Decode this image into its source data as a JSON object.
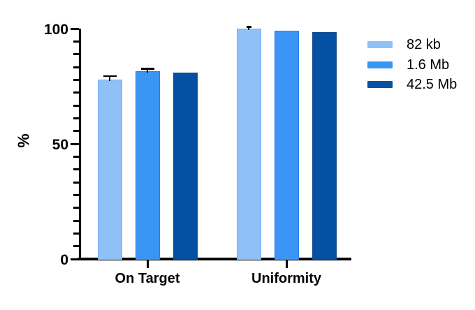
{
  "figure": {
    "background": "#ffffff",
    "text_color": "#000000"
  },
  "chart_data": {
    "type": "bar",
    "title": "",
    "xlabel": "",
    "ylabel": "%",
    "categories": [
      "On Target",
      "Uniformity"
    ],
    "series": [
      {
        "name": "82 kb",
        "color": "#8FC1F8",
        "border": "#77AEEE",
        "values": [
          78,
          100
        ],
        "errors": [
          1.5,
          0.9
        ]
      },
      {
        "name": "1.6 Mb",
        "color": "#3B95F5",
        "border": "#2381EA",
        "values": [
          81.5,
          99
        ],
        "errors": [
          1.2,
          0
        ]
      },
      {
        "name": "42.5 Mb",
        "color": "#0450A2",
        "border": "#16498F",
        "values": [
          81,
          98.5
        ],
        "errors": [
          0,
          0
        ]
      }
    ],
    "y_axis": {
      "ticks": [
        0,
        50,
        100
      ],
      "tick_labels": [
        "0",
        "50",
        "100"
      ],
      "minor_ticks_per_interval": 8,
      "lim": [
        0,
        100
      ]
    },
    "legend": {
      "position": "right",
      "entries": [
        "82 kb",
        "1.6 Mb",
        "42.5 Mb"
      ]
    },
    "grid": "off",
    "axis_color": "#000000",
    "error_bar_color": "#000000"
  }
}
